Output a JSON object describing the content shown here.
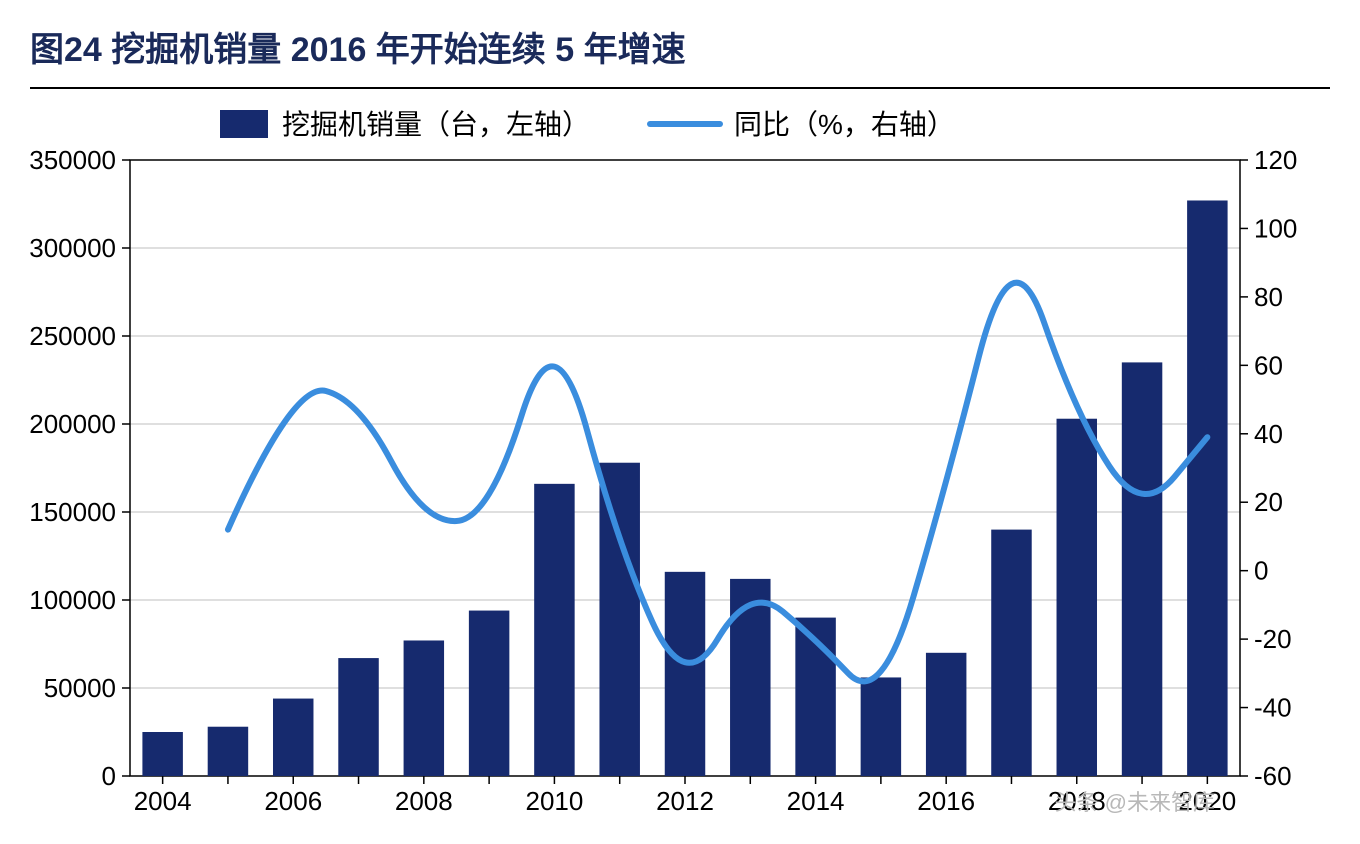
{
  "title": "图24 挖掘机销量 2016 年开始连续 5 年增速",
  "watermark": "头条 @未来智库",
  "legend": {
    "bar_label": "挖掘机销量（台，左轴）",
    "line_label": "同比（%，右轴）"
  },
  "chart": {
    "type": "bar+line-dual-axis",
    "background_color": "#ffffff",
    "grid_color": "#bfbfbf",
    "axis_color": "#000000",
    "bar_color": "#162a6e",
    "line_color": "#3a8dde",
    "line_width": 6,
    "bar_width_ratio": 0.62,
    "title_color": "#1a2a5a",
    "title_fontsize": 34,
    "axis_fontsize": 26,
    "legend_fontsize": 28,
    "years": [
      "2004",
      "2005",
      "2006",
      "2007",
      "2008",
      "2009",
      "2010",
      "2011",
      "2012",
      "2013",
      "2014",
      "2015",
      "2016",
      "2017",
      "2018",
      "2019",
      "2020"
    ],
    "x_tick_labels": [
      "2004",
      "2006",
      "2008",
      "2010",
      "2012",
      "2014",
      "2016",
      "2018",
      "2020"
    ],
    "left_axis": {
      "min": 0,
      "max": 350000,
      "step": 50000,
      "ticks": [
        0,
        50000,
        100000,
        150000,
        200000,
        250000,
        300000,
        350000
      ]
    },
    "right_axis": {
      "min": -60,
      "max": 120,
      "step": 20,
      "ticks": [
        -60,
        -40,
        -20,
        0,
        20,
        40,
        60,
        80,
        100,
        120
      ]
    },
    "bar_values": [
      25000,
      28000,
      44000,
      67000,
      77000,
      94000,
      166000,
      178000,
      116000,
      112000,
      90000,
      56000,
      70000,
      140000,
      203000,
      235000,
      327000
    ],
    "line_values": [
      null,
      12,
      55,
      50,
      14,
      15,
      76,
      6,
      -36,
      -4,
      -20,
      -40,
      25,
      100,
      45,
      16,
      39
    ]
  }
}
